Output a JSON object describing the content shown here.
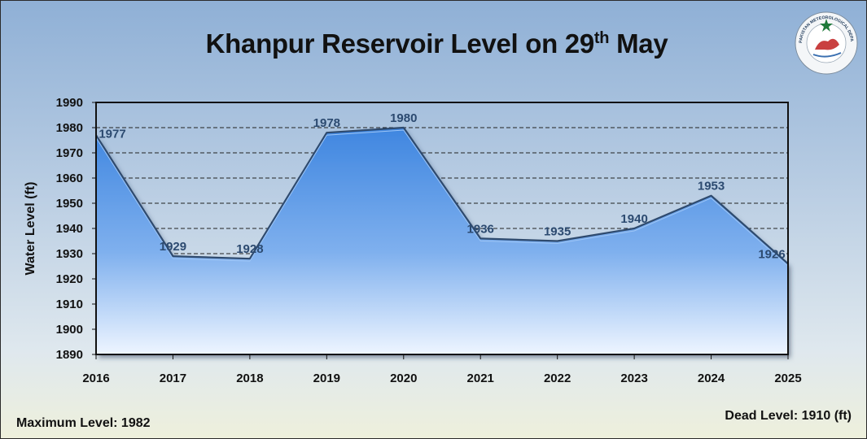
{
  "title": {
    "main": "Khanpur Reservoir Level on 29",
    "sup": "th",
    "tail": " May"
  },
  "logo": {
    "icon": "pmd-logo-icon",
    "text": "PAKISTAN METEOROLOGICAL DEPARTMENT"
  },
  "footer": {
    "max_level": "Maximum Level: 1982",
    "dead_level": "Dead Level: 1910 (ft)"
  },
  "colors": {
    "area_top": "#4a8fe3",
    "area_bottom": "#e8f2ff",
    "line": "#2e4a6e",
    "label": "#2c4a70"
  },
  "chart_data": {
    "type": "area",
    "title": "Khanpur Reservoir Level on 29th May",
    "ylabel": "Water Level (ft)",
    "xlabel": "",
    "categories": [
      "2016",
      "2017",
      "2018",
      "2019",
      "2020",
      "2021",
      "2022",
      "2023",
      "2024",
      "2025"
    ],
    "values": [
      1977,
      1929,
      1928,
      1978,
      1980,
      1936,
      1935,
      1940,
      1953,
      1926
    ],
    "data_labels": [
      "1977",
      "1929",
      "1928",
      "1978",
      "1980",
      "1936",
      "1935",
      "1940",
      "1953",
      "1926"
    ],
    "ylim": [
      1890,
      1990
    ],
    "yticks": [
      "1890",
      "1900",
      "1910",
      "1920",
      "1930",
      "1940",
      "1950",
      "1960",
      "1970",
      "1980",
      "1990"
    ],
    "grid": "dashed horizontal",
    "legend": "none"
  }
}
